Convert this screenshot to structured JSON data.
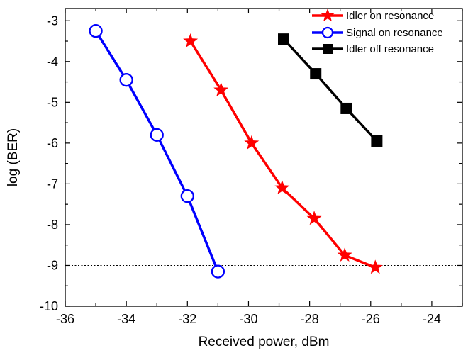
{
  "chart_data": {
    "type": "line",
    "xlabel": "Received power, dBm",
    "ylabel": "log (BER)",
    "xlim": [
      -36,
      -23
    ],
    "ylim": [
      -10,
      -2.7
    ],
    "x_ticks": [
      -36,
      -34,
      -32,
      -30,
      -28,
      -26,
      -24
    ],
    "y_ticks": [
      -3,
      -4,
      -5,
      -6,
      -7,
      -8,
      -9,
      -10
    ],
    "grid": false,
    "legend_position": "top-right",
    "reference_line": {
      "y": -9,
      "style": "dotted"
    },
    "series": [
      {
        "name": "Idler on resonance",
        "color": "#ff0000",
        "marker": "star",
        "x": [
          -31.9,
          -30.9,
          -29.9,
          -28.9,
          -27.85,
          -26.85,
          -25.85
        ],
        "y": [
          -3.5,
          -4.7,
          -6.0,
          -7.1,
          -7.85,
          -8.75,
          -9.05
        ]
      },
      {
        "name": "Signal on resonance",
        "color": "#0000ff",
        "marker": "open-circle",
        "x": [
          -35.0,
          -34.0,
          -33.0,
          -32.0,
          -31.0
        ],
        "y": [
          -3.25,
          -4.45,
          -5.8,
          -7.3,
          -9.15
        ]
      },
      {
        "name": "Idler off resonance",
        "color": "#000000",
        "marker": "square",
        "x": [
          -28.85,
          -27.8,
          -26.8,
          -25.8
        ],
        "y": [
          -3.45,
          -4.3,
          -5.15,
          -5.95
        ]
      }
    ]
  }
}
